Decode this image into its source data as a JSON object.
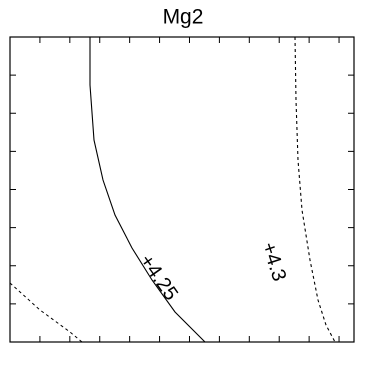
{
  "chart_data": {
    "type": "contour",
    "title": "Mg2",
    "levels": [
      4.25,
      4.3
    ],
    "value_labels": [
      "+4.25",
      "+4.3"
    ]
  }
}
